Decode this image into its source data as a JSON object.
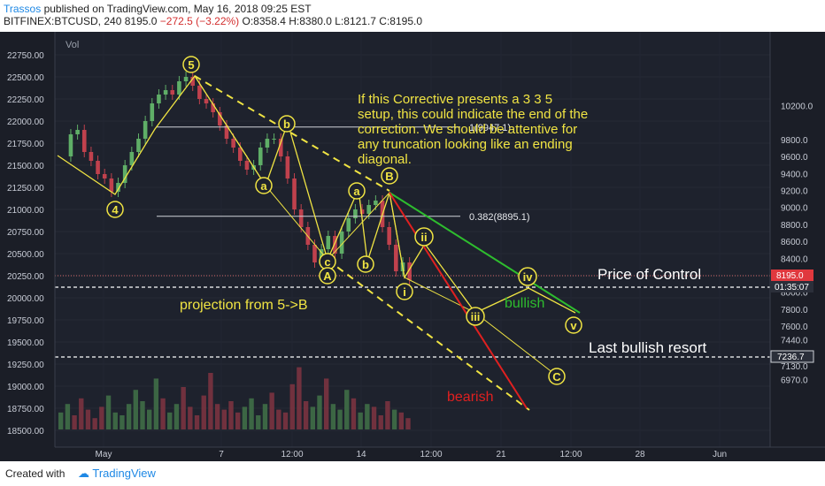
{
  "header": {
    "author": "Trassos",
    "published_text": "published on TradingView.com, May 16, 2018 09:25 EST",
    "symbol": "BITFINEX:BTCUSD, 240",
    "last": "8195.0",
    "change": "−272.5 (−3.22%)",
    "ohlc": "O:8358.4 H:8380.0 L:8121.7 C:8195.0"
  },
  "footer": {
    "created_with": "Created with",
    "brand": "TradingView"
  },
  "colors": {
    "background": "#1b1e27",
    "up_candle": "#5fae67",
    "down_candle": "#c0414d",
    "wave": "#f0e443",
    "bullish": "#2ebd2e",
    "bearish": "#e02020",
    "text_white": "#ffffff",
    "price_label": "#e0383e"
  },
  "chart_data": {
    "type": "candlestick",
    "title": "",
    "indicator_label": "Vol",
    "left_axis_ticks": [
      "22750.00",
      "22500.00",
      "22250.00",
      "22000.00",
      "21750.00",
      "21500.00",
      "21250.00",
      "21000.00",
      "20750.00",
      "20500.00",
      "20250.00",
      "20000.00",
      "19750.00",
      "19500.00",
      "19250.00",
      "19000.00",
      "18750.00",
      "18500.00"
    ],
    "right_axis_ticks": [
      "10200.0",
      "9800.0",
      "9600.0",
      "9400.0",
      "9200.0",
      "9000.0",
      "8800.0",
      "8600.0",
      "8400.0",
      "8200.0",
      "8000.0",
      "7800.0",
      "7600.0",
      "7440.0",
      "7250.0",
      "7130.0",
      "6970.0"
    ],
    "right_axis_labels": {
      "price": "8195.0",
      "countdown": "01:35:07",
      "resort": "7236.7"
    },
    "x_ticks": [
      "May",
      "7",
      "12:00",
      "14",
      "12:00",
      "21",
      "12:00",
      "28",
      "Jun"
    ],
    "fib_levels": [
      {
        "label": "1(9947.1)",
        "value": 9947.1
      },
      {
        "label": "0.382(8895.1)",
        "value": 8895.1
      }
    ],
    "horizontal_levels": [
      {
        "label": "Price of Control",
        "value": 8195.0
      },
      {
        "label": "Last bullish resort",
        "value": 7236.7
      }
    ],
    "wave_labels": [
      "5",
      "4",
      "b",
      "a",
      "B",
      "a",
      "c",
      "A",
      "b",
      "ii",
      "i",
      "iii",
      "iv",
      "v",
      "C"
    ],
    "annotations": [
      "If this Corrective presents a 3 3 5",
      "setup, this could indicate the end of the",
      "correction. We should be attentive for",
      "any truncation looking like an ending",
      "diagonal."
    ],
    "projection_label": "projection from 5->B",
    "bullish_label": "bullish",
    "bearish_label": "bearish",
    "price_path_left_axis": [
      21600,
      21850,
      21900,
      21650,
      21550,
      21400,
      21350,
      21200,
      21300,
      21500,
      21650,
      21800,
      22000,
      22200,
      22300,
      22350,
      22300,
      22450,
      22500,
      22400,
      22250,
      22200,
      22100,
      21950,
      21800,
      21700,
      21550,
      21450,
      21500,
      21700,
      21800,
      21800,
      21600,
      21350,
      21000,
      20800,
      20600,
      20400,
      20550,
      20700,
      20500,
      20750,
      20900,
      21000,
      20950,
      21050,
      21100,
      20800,
      20600,
      20300,
      20400,
      20200
    ],
    "volume": [
      6,
      9,
      5,
      11,
      7,
      4,
      8,
      12,
      6,
      5,
      9,
      14,
      10,
      7,
      18,
      11,
      6,
      9,
      15,
      8,
      5,
      12,
      20,
      9,
      7,
      10,
      6,
      8,
      11,
      5,
      9,
      13,
      7,
      6,
      16,
      22,
      10,
      8,
      12,
      18,
      9,
      7,
      14,
      11,
      6,
      9,
      8,
      5,
      10,
      7,
      6,
      4
    ]
  }
}
